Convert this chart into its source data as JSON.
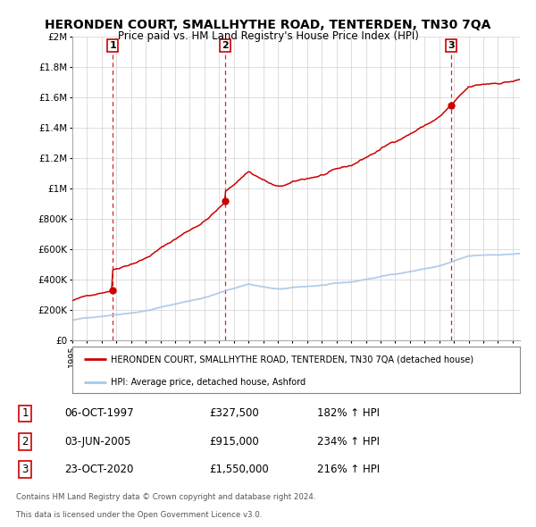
{
  "title": "HERONDEN COURT, SMALLHYTHE ROAD, TENTERDEN, TN30 7QA",
  "subtitle": "Price paid vs. HM Land Registry's House Price Index (HPI)",
  "background_color": "#ffffff",
  "grid_color": "#d0d0d0",
  "hpi_line_color": "#a8c8e8",
  "price_line_color": "#cc0000",
  "sale_dot_color": "#cc0000",
  "legend_house_label": "HERONDEN COURT, SMALLHYTHE ROAD, TENTERDEN, TN30 7QA (detached house)",
  "legend_hpi_label": "HPI: Average price, detached house, Ashford",
  "sales": [
    {
      "date_num": 1997.76,
      "price": 327500,
      "label": "1"
    },
    {
      "date_num": 2005.42,
      "price": 915000,
      "label": "2"
    },
    {
      "date_num": 2020.81,
      "price": 1550000,
      "label": "3"
    }
  ],
  "table_data": [
    [
      "1",
      "06-OCT-1997",
      "£327,500",
      "182% ↑ HPI"
    ],
    [
      "2",
      "03-JUN-2005",
      "£915,000",
      "234% ↑ HPI"
    ],
    [
      "3",
      "23-OCT-2020",
      "£1,550,000",
      "216% ↑ HPI"
    ]
  ],
  "footer_line1": "Contains HM Land Registry data © Crown copyright and database right 2024.",
  "footer_line2": "This data is licensed under the Open Government Licence v3.0.",
  "ylim": [
    0,
    2000000
  ],
  "yticks": [
    0,
    200000,
    400000,
    600000,
    800000,
    1000000,
    1200000,
    1400000,
    1600000,
    1800000,
    2000000
  ],
  "ytick_labels": [
    "£0",
    "£200K",
    "£400K",
    "£600K",
    "£800K",
    "£1M",
    "£1.2M",
    "£1.4M",
    "£1.6M",
    "£1.8M",
    "£2M"
  ],
  "xmin": 1995.0,
  "xmax": 2025.5
}
